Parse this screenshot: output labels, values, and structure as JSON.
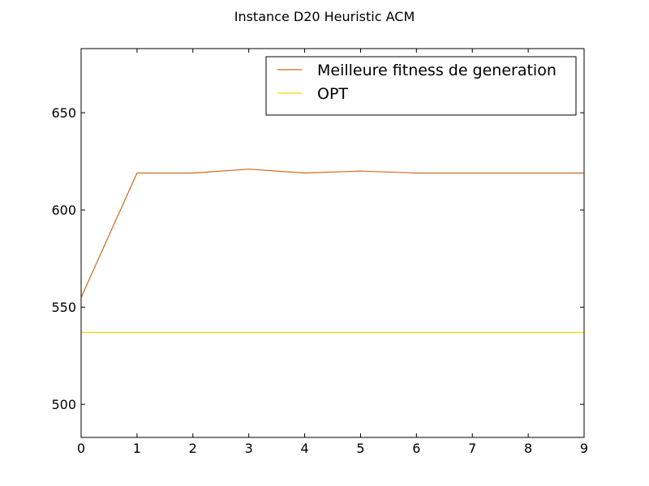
{
  "chart_data": {
    "type": "line",
    "title": "Instance D20 Heuristic ACM",
    "xlabel": "",
    "ylabel": "",
    "xlim": [
      0,
      9
    ],
    "ylim": [
      483,
      683
    ],
    "x_ticks": [
      "0",
      "1",
      "2",
      "3",
      "4",
      "5",
      "6",
      "7",
      "8",
      "9"
    ],
    "y_ticks": [
      "500",
      "550",
      "600",
      "650"
    ],
    "y_tick_values": [
      500,
      550,
      600,
      650
    ],
    "grid": false,
    "legend_position": "top-right",
    "x": [
      0,
      1,
      2,
      3,
      4,
      5,
      6,
      7,
      8,
      9
    ],
    "series": [
      {
        "name": "Meilleure fitness de generation",
        "color": "#d2691e",
        "values": [
          555,
          619,
          619,
          621,
          619,
          620,
          619,
          619,
          619,
          619
        ]
      },
      {
        "name": "OPT",
        "color": "#ffd700",
        "values": [
          537,
          537,
          537,
          537,
          537,
          537,
          537,
          537,
          537,
          537
        ]
      }
    ]
  }
}
